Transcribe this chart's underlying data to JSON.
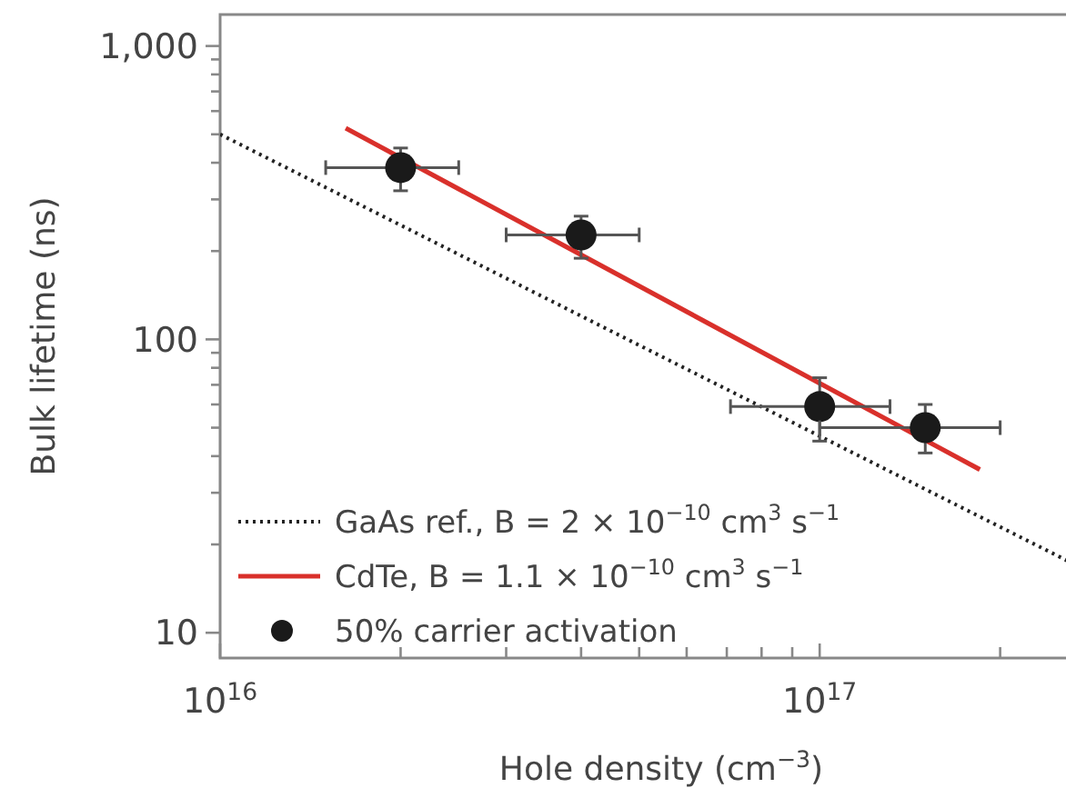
{
  "chart_data": {
    "type": "scatter",
    "xlabel": "Hole density (cm$^{−3}$)",
    "ylabel": "Bulk lifetime (ns)",
    "log": "xy",
    "xlim": [
      1e+16,
      2.84e+17
    ],
    "ylim": [
      8.2,
      1280
    ],
    "xticks": [
      {
        "value": 1e+16,
        "label": "10$^{16}$"
      },
      {
        "value": 2e+16,
        "label": null
      },
      {
        "value": 3e+16,
        "label": null
      },
      {
        "value": 4e+16,
        "label": null
      },
      {
        "value": 5e+16,
        "label": null
      },
      {
        "value": 6e+16,
        "label": null
      },
      {
        "value": 7e+16,
        "label": null
      },
      {
        "value": 8e+16,
        "label": null
      },
      {
        "value": 9e+16,
        "label": null
      },
      {
        "value": 1e+17,
        "label": "10$^{17}$"
      },
      {
        "value": 2e+17,
        "label": null
      }
    ],
    "yticks": [
      {
        "value": 10,
        "label": "10"
      },
      {
        "value": 20,
        "label": null
      },
      {
        "value": 30,
        "label": null
      },
      {
        "value": 40,
        "label": null
      },
      {
        "value": 50,
        "label": null
      },
      {
        "value": 60,
        "label": null
      },
      {
        "value": 70,
        "label": null
      },
      {
        "value": 80,
        "label": null
      },
      {
        "value": 90,
        "label": null
      },
      {
        "value": 100,
        "label": "100"
      },
      {
        "value": 200,
        "label": null
      },
      {
        "value": 300,
        "label": null
      },
      {
        "value": 400,
        "label": null
      },
      {
        "value": 500,
        "label": null
      },
      {
        "value": 600,
        "label": null
      },
      {
        "value": 700,
        "label": null
      },
      {
        "value": 800,
        "label": null
      },
      {
        "value": 900,
        "label": null
      },
      {
        "value": 1000,
        "label": "1,000"
      }
    ],
    "grid": false,
    "legend": "bottom left",
    "series": [
      {
        "name": "GaAs ref., B = 2 × 10$^{−10}$ cm$^{3}$ s$^{−1}$",
        "type": "line",
        "line_style": "dotted",
        "color": "#222222",
        "x": [
          1e+16,
          2.84e+17
        ],
        "values": [
          500,
          16
        ]
      },
      {
        "name": "CdTe, B = 1.1 × 10$^{−10}$ cm$^{3}$ s$^{−1}$",
        "type": "line",
        "line_style": "solid",
        "color": "#d9302b",
        "x": [
          1.62e+16,
          1.85e+17
        ],
        "values": [
          525,
          36
        ]
      },
      {
        "name": "50% carrier activation",
        "marker": "circle",
        "color": "#1a1a1a",
        "x": [
          2e+16,
          4e+16,
          1e+17,
          1.5e+17
        ],
        "values": [
          385,
          227,
          59,
          50
        ],
        "errors": [
          [
            321,
            449
          ],
          [
            189,
            263
          ],
          [
            45,
            74
          ],
          [
            41,
            60
          ]
        ],
        "xerrors": [
          [
            1.5e+16,
            2.5e+16
          ],
          [
            3e+16,
            5e+16
          ],
          [
            7.1e+16,
            1.31e+17
          ],
          [
            1e+17,
            2e+17
          ]
        ]
      }
    ]
  }
}
